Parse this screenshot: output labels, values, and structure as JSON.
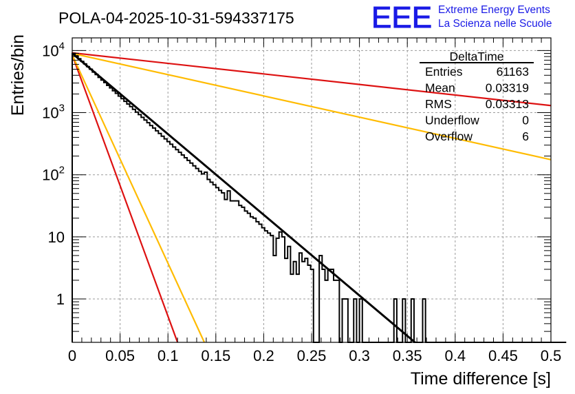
{
  "chart_data": {
    "type": "histogram",
    "title": "POLA-04-2025-10-31-594337175",
    "xlabel": "Time difference [s]",
    "ylabel": "Entries/bin",
    "xlim": [
      0,
      0.5
    ],
    "ylim": [
      0.2,
      16000
    ],
    "yscale": "log",
    "grid": true,
    "x_ticks": [
      "0",
      "0.05",
      "0.1",
      "0.15",
      "0.2",
      "0.25",
      "0.3",
      "0.35",
      "0.4",
      "0.45",
      "0.5"
    ],
    "y_ticks": [
      {
        "value": 10000,
        "base": "10",
        "exp": "4"
      },
      {
        "value": 1000,
        "base": "10",
        "exp": "3"
      },
      {
        "value": 100,
        "base": "10",
        "exp": "2"
      },
      {
        "value": 10,
        "base": "10",
        "exp": ""
      },
      {
        "value": 1,
        "base": "1",
        "exp": ""
      }
    ],
    "logo": {
      "mark": "EEE",
      "line1": "Extreme Energy Events",
      "line2": "La Scienza nelle Scuole",
      "color": "#1a1ae6"
    },
    "stats_box": {
      "name": "DeltaTime",
      "rows": [
        {
          "label": "Entries",
          "value": "61163"
        },
        {
          "label": "Mean",
          "value": "0.03319"
        },
        {
          "label": "RMS",
          "value": "0.03313"
        },
        {
          "label": "Underflow",
          "value": "0"
        },
        {
          "label": "Overflow",
          "value": "6"
        }
      ]
    },
    "histogram": {
      "name": "DeltaTime",
      "bin_width": 0.003,
      "x_start": 0,
      "color": "#000000",
      "counts": [
        9000,
        8200,
        7400,
        6700,
        6100,
        5500,
        5000,
        4500,
        4100,
        3700,
        3350,
        3050,
        2750,
        2500,
        2250,
        2050,
        1850,
        1680,
        1520,
        1380,
        1250,
        1130,
        1020,
        930,
        840,
        760,
        690,
        620,
        565,
        510,
        462,
        418,
        378,
        342,
        310,
        280,
        254,
        230,
        208,
        188,
        170,
        154,
        139,
        126,
        114,
        103,
        110,
        84,
        76,
        69,
        62,
        56,
        51,
        40,
        55,
        38,
        38,
        38,
        32,
        30,
        26,
        24,
        21,
        20,
        17.5,
        16,
        14,
        12.5,
        11.5,
        10.5,
        5,
        9.5,
        12,
        10,
        4.5,
        7,
        2.5,
        4,
        2.5,
        5.5,
        4,
        4.5,
        3.5,
        3,
        0,
        0,
        5,
        3,
        2,
        3,
        3,
        2,
        2,
        0,
        1,
        1,
        0,
        0,
        1,
        0,
        1,
        0,
        0,
        0,
        0,
        0,
        0,
        0,
        0,
        0,
        0,
        0,
        1,
        0,
        0,
        1,
        0,
        0,
        1,
        0,
        0,
        0,
        1,
        0,
        0,
        0,
        0,
        0,
        0,
        0,
        0,
        0,
        0,
        0,
        0,
        0,
        0,
        0,
        0,
        0,
        0,
        0,
        0,
        0,
        0,
        0,
        0,
        0,
        0,
        0,
        0,
        0,
        0,
        0,
        0,
        0,
        0,
        0,
        0,
        0,
        0,
        0,
        0,
        0,
        0,
        0,
        0,
        0,
        0,
        0,
        0,
        0,
        0
      ]
    },
    "series": [
      {
        "name": "exponential fit",
        "kind": "fit",
        "color": "#000000",
        "x": [
          0,
          0.358
        ],
        "y": [
          9000,
          0.2
        ]
      },
      {
        "name": "red shallow",
        "kind": "reference",
        "color": "#dd1111",
        "x": [
          0,
          0.5
        ],
        "y": [
          9200,
          1300
        ]
      },
      {
        "name": "yellow shallow",
        "kind": "reference",
        "color": "#ffbb00",
        "x": [
          0,
          0.5
        ],
        "y": [
          9000,
          175
        ]
      },
      {
        "name": "red steep",
        "kind": "reference",
        "color": "#dd1111",
        "x": [
          0,
          0.11
        ],
        "y": [
          8500,
          0.2
        ]
      },
      {
        "name": "yellow steep",
        "kind": "reference",
        "color": "#ffbb00",
        "x": [
          0,
          0.138
        ],
        "y": [
          8500,
          0.2
        ]
      }
    ]
  }
}
